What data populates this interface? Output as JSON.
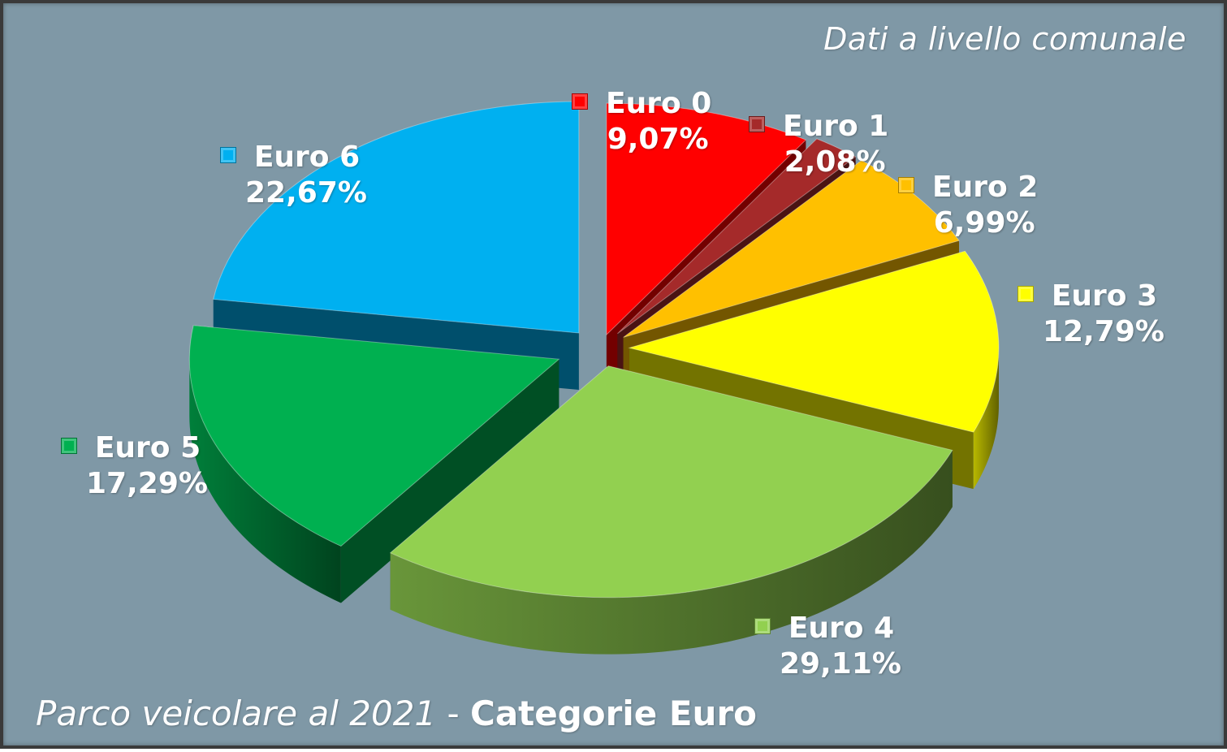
{
  "title_italic": "Parco veicolare al 2021",
  "title_sep": " - ",
  "title_bold": "Categorie Euro",
  "subtitle": "Dati a livello comunale",
  "chart_data": {
    "type": "pie",
    "categories": [
      "Euro 0",
      "Euro 1",
      "Euro 2",
      "Euro 3",
      "Euro 4",
      "Euro 5",
      "Euro 6"
    ],
    "values": [
      9.07,
      2.08,
      6.99,
      12.79,
      29.11,
      17.29,
      22.67
    ],
    "value_labels": [
      "9,07%",
      "2,08%",
      "6,99%",
      "12,79%",
      "29,11%",
      "17,29%",
      "22,67%"
    ],
    "colors": [
      "#ff0000",
      "#a52a2a",
      "#ffc000",
      "#ffff00",
      "#92d050",
      "#00b050",
      "#00b0f0"
    ],
    "exploded": true,
    "three_d": true
  }
}
